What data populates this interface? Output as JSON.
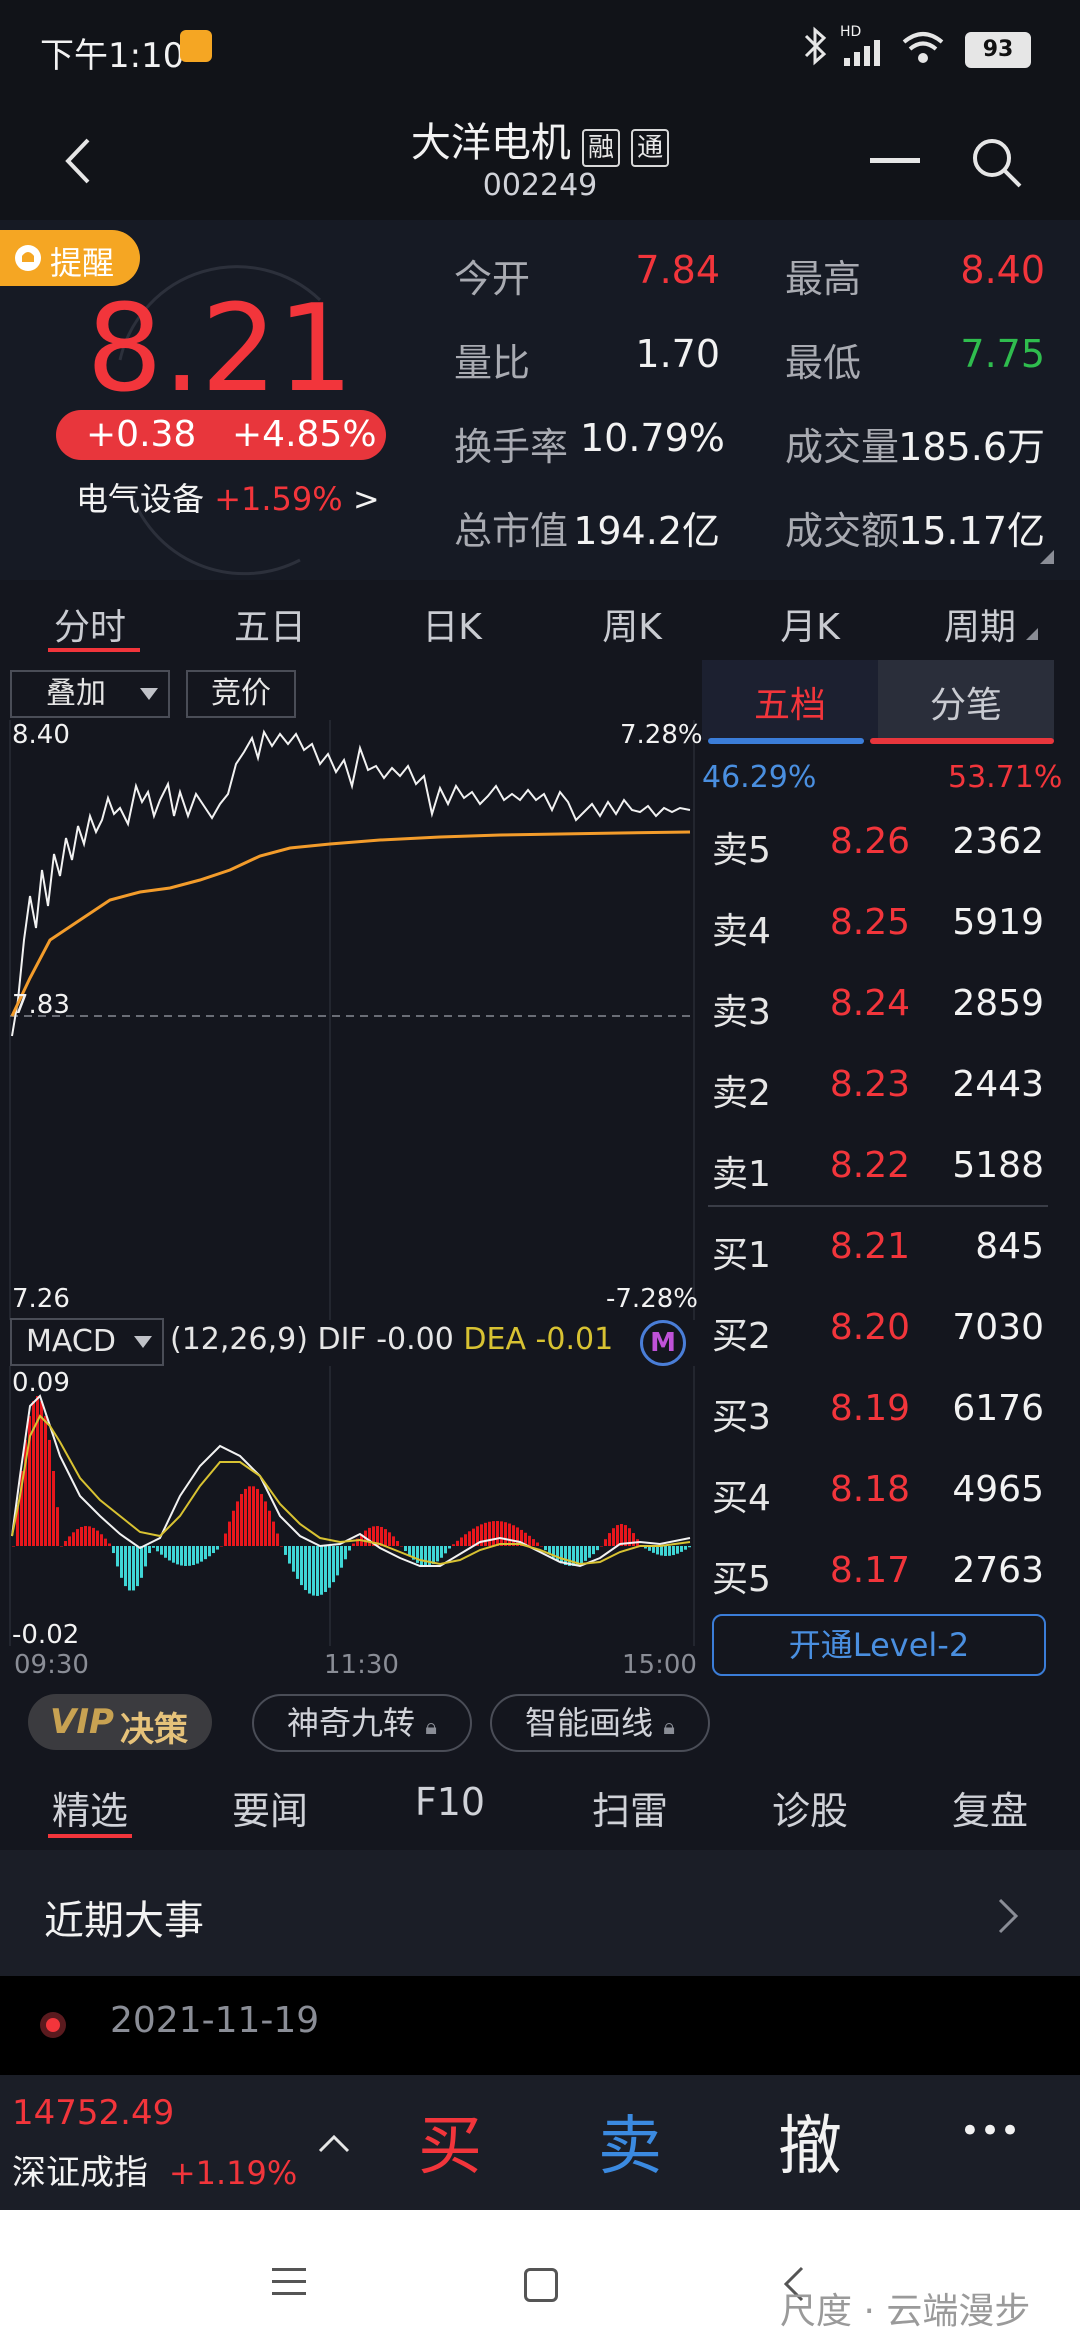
{
  "status": {
    "time": "下午1:10",
    "battery": "93",
    "network": "HD"
  },
  "header": {
    "stock_name": "大洋电机",
    "tag_margin": "融",
    "tag_connect": "通",
    "stock_code": "002249"
  },
  "quote": {
    "alert_label": "提醒",
    "price": "8.21",
    "change": "+0.38",
    "change_pct": "+4.85%",
    "sector_name": "电气设备",
    "sector_change": "+1.59%",
    "sector_arrow": ">",
    "stats": [
      {
        "label": "今开",
        "value": "7.84",
        "color": "red"
      },
      {
        "label": "最高",
        "value": "8.40",
        "color": "red"
      },
      {
        "label": "量比",
        "value": "1.70",
        "color": "white"
      },
      {
        "label": "最低",
        "value": "7.75",
        "color": "green"
      },
      {
        "label": "换手率",
        "value": "10.79%",
        "color": "white"
      },
      {
        "label": "成交量",
        "value": "185.6万",
        "color": "white"
      },
      {
        "label": "总市值",
        "value": "194.2亿",
        "color": "white"
      },
      {
        "label": "成交额",
        "value": "15.17亿",
        "color": "white"
      }
    ]
  },
  "period_tabs": [
    "分时",
    "五日",
    "日K",
    "周K",
    "月K",
    "周期"
  ],
  "chart_toolbar": {
    "overlay_label": "叠加",
    "auction_label": "竞价"
  },
  "chart_data": [
    {
      "type": "line",
      "title": "",
      "series": [],
      "ylim": [
        7.26,
        8.4
      ],
      "y_tick_labels_left": [
        "8.40",
        "7.83",
        "7.26"
      ],
      "y_tick_labels_right": [
        "7.28%",
        "-7.28%"
      ],
      "x_tick_labels": [
        "09:30",
        "11:30",
        "15:00"
      ],
      "reference_price": 7.83
    },
    {
      "type": "bar",
      "title": "MACD",
      "params": "(12,26,9)",
      "dif_label": "DIF",
      "dif_value": "-0.00",
      "dea_label": "DEA",
      "dea_value": "-0.01",
      "ylim": [
        -0.02,
        0.09
      ],
      "y_tick_labels": [
        "0.09",
        "-0.02"
      ]
    }
  ],
  "orderbook": {
    "tab_five": "五档",
    "tab_ticks": "分笔",
    "buy_ratio": "46.29%",
    "sell_ratio": "53.71%",
    "asks": [
      {
        "label": "卖5",
        "price": "8.26",
        "volume": "2362"
      },
      {
        "label": "卖4",
        "price": "8.25",
        "volume": "5919"
      },
      {
        "label": "卖3",
        "price": "8.24",
        "volume": "2859"
      },
      {
        "label": "卖2",
        "price": "8.23",
        "volume": "2443"
      },
      {
        "label": "卖1",
        "price": "8.22",
        "volume": "5188"
      }
    ],
    "bids": [
      {
        "label": "买1",
        "price": "8.21",
        "volume": "845"
      },
      {
        "label": "买2",
        "price": "8.20",
        "volume": "7030"
      },
      {
        "label": "买3",
        "price": "8.19",
        "volume": "6176"
      },
      {
        "label": "买4",
        "price": "8.18",
        "volume": "4965"
      },
      {
        "label": "买5",
        "price": "8.17",
        "volume": "2763"
      }
    ],
    "level2_button": "开通Level-2"
  },
  "tools": {
    "vip": "VIP",
    "vip_label": "决策",
    "magic_nine": "神奇九转",
    "smart_line": "智能画线"
  },
  "content_tabs": [
    "精选",
    "要闻",
    "F10",
    "扫雷",
    "诊股",
    "复盘"
  ],
  "events": {
    "title": "近期大事",
    "date": "2021-11-19"
  },
  "index_bar": {
    "index_value": "14752.49",
    "index_name": "深证成指",
    "index_change": "+1.19%",
    "buy": "买",
    "sell": "卖",
    "cancel": "撤",
    "more": "•••"
  },
  "watermark": "尺度 · 云端漫步"
}
